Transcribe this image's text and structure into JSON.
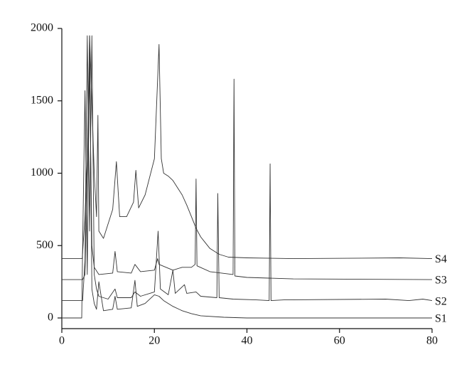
{
  "chart_data": {
    "type": "line",
    "xlim": [
      0,
      80
    ],
    "xticks": [
      0,
      20,
      40,
      60,
      80
    ],
    "ylim": [
      0,
      2000
    ],
    "yticks": [
      0,
      500,
      1000,
      1500,
      2000
    ],
    "grid": false,
    "series": [
      {
        "name": "S1",
        "color": "#333333",
        "x": [
          0,
          4.3,
          4.5,
          5,
          5.5,
          6,
          6.5,
          7,
          7.5,
          8,
          9,
          11,
          11.5,
          12,
          15,
          15.8,
          16.3,
          18,
          20,
          21,
          22,
          24,
          26,
          28,
          30,
          35,
          40,
          50,
          80
        ],
        "values": [
          0,
          0,
          500,
          1570,
          300,
          1950,
          200,
          100,
          60,
          250,
          50,
          60,
          150,
          60,
          70,
          260,
          80,
          100,
          160,
          150,
          120,
          80,
          50,
          30,
          15,
          5,
          0,
          0,
          0
        ]
      },
      {
        "name": "S2",
        "color": "#333333",
        "x": [
          0,
          4.5,
          5,
          5.5,
          6,
          6.5,
          7,
          7.5,
          8,
          10,
          11.5,
          12,
          15,
          15.8,
          17,
          20,
          20.8,
          21.3,
          23,
          24,
          24.5,
          26.5,
          27,
          29,
          30,
          33.5,
          33.7,
          34,
          37,
          42,
          44.8,
          45,
          45.2,
          48,
          70,
          75,
          78,
          80
        ],
        "values": [
          120,
          120,
          400,
          1950,
          600,
          1950,
          300,
          200,
          150,
          130,
          200,
          140,
          140,
          180,
          150,
          180,
          600,
          200,
          160,
          330,
          170,
          230,
          170,
          180,
          150,
          140,
          860,
          140,
          130,
          125,
          120,
          1065,
          120,
          125,
          130,
          120,
          130,
          120
        ]
      },
      {
        "name": "S3",
        "color": "#333333",
        "x": [
          0,
          4.5,
          5,
          6,
          6.5,
          7,
          8,
          11,
          11.5,
          12,
          15,
          15.8,
          17,
          20,
          20.7,
          21,
          24,
          26,
          28,
          28.8,
          29,
          29.2,
          32,
          37,
          37.2,
          37.4,
          40,
          50,
          80
        ],
        "values": [
          265,
          265,
          300,
          1700,
          500,
          350,
          300,
          310,
          460,
          320,
          310,
          370,
          320,
          330,
          410,
          370,
          330,
          350,
          350,
          370,
          960,
          360,
          320,
          300,
          1650,
          290,
          280,
          270,
          265
        ]
      },
      {
        "name": "S4",
        "color": "#333333",
        "x": [
          0,
          4.4,
          5,
          5.5,
          6,
          7,
          7.5,
          7.8,
          8,
          9,
          10,
          11,
          11.8,
          12.5,
          14,
          15.5,
          16,
          16.6,
          18,
          20,
          21,
          21.5,
          22,
          23,
          24,
          25,
          26,
          27,
          28,
          29,
          30,
          31,
          32,
          33,
          34,
          36,
          40,
          50,
          73,
          80
        ],
        "values": [
          410,
          410,
          700,
          1100,
          1950,
          1000,
          700,
          1400,
          600,
          550,
          650,
          750,
          1080,
          700,
          700,
          800,
          1020,
          760,
          850,
          1100,
          1890,
          1100,
          1000,
          980,
          950,
          900,
          850,
          780,
          700,
          620,
          560,
          520,
          480,
          460,
          440,
          420,
          415,
          410,
          415,
          410
        ]
      }
    ]
  }
}
